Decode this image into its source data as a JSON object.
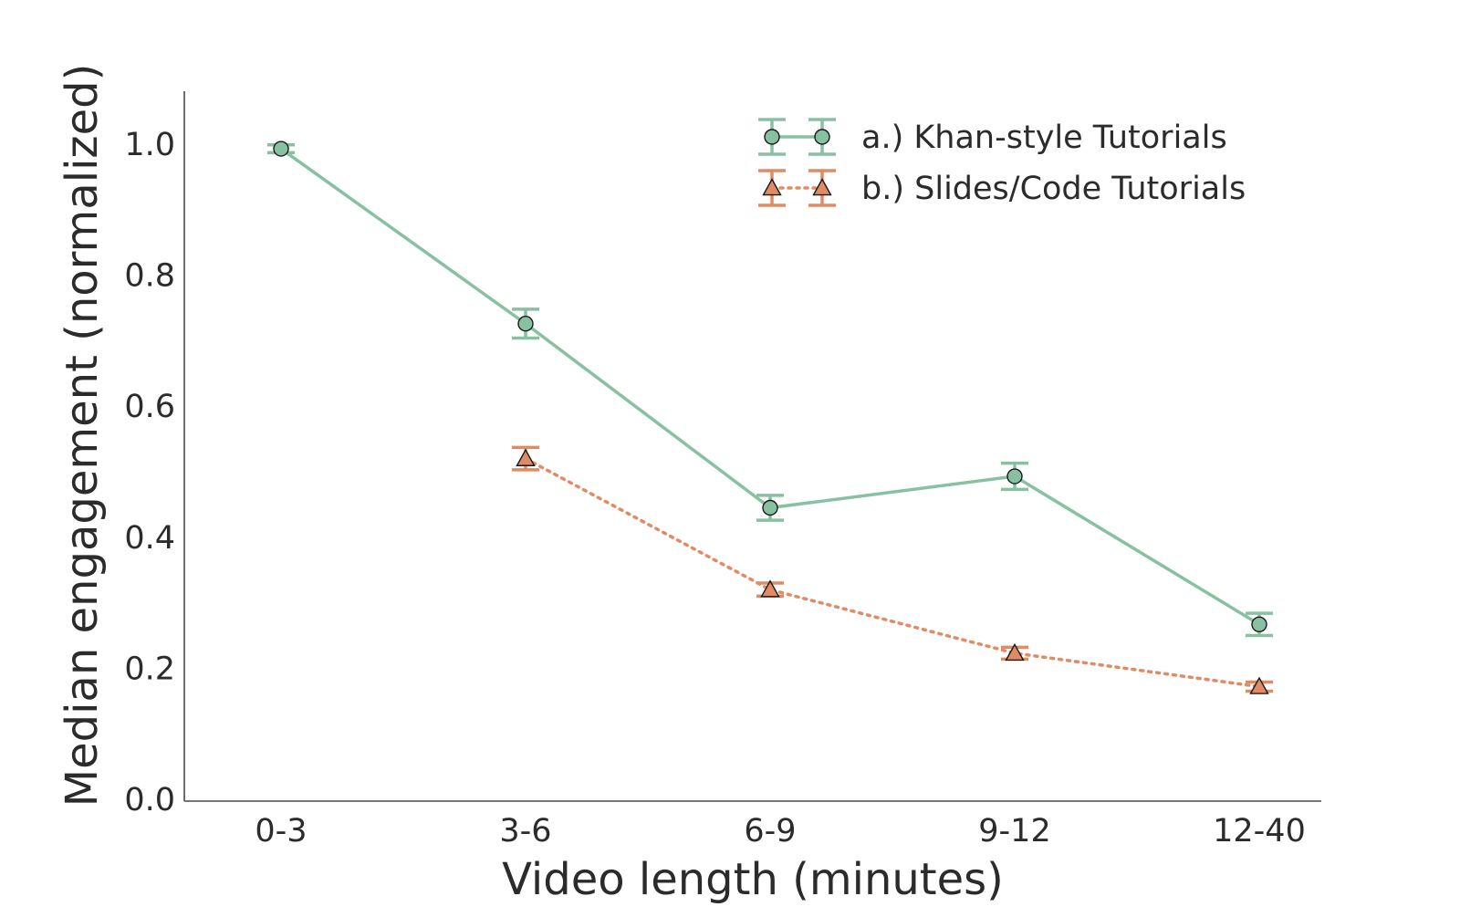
{
  "chart_data": {
    "type": "line",
    "xlabel": "Video length (minutes)",
    "ylabel": "Median engagement (normalized)",
    "categories": [
      "0-3",
      "3-6",
      "6-9",
      "9-12",
      "12-40"
    ],
    "ylim": [
      0.0,
      1.08
    ],
    "yticks": [
      0.0,
      0.2,
      0.4,
      0.6,
      0.8,
      1.0
    ],
    "ytick_labels": [
      "0.0",
      "0.2",
      "0.4",
      "0.6",
      "0.8",
      "1.0"
    ],
    "grid": false,
    "legend_position": "top-right",
    "series": [
      {
        "name": "a.) Khan-style Tutorials",
        "color": "#88c1a1",
        "marker": "circle",
        "line_style": "solid",
        "values": [
          0.993,
          0.726,
          0.445,
          0.493,
          0.267
        ],
        "error": [
          0.006,
          0.022,
          0.019,
          0.02,
          0.017
        ]
      },
      {
        "name": "b.) Slides/Code Tutorials",
        "color": "#e18b64",
        "marker": "triangle",
        "line_style": "dotted",
        "values": [
          null,
          0.52,
          0.32,
          0.223,
          0.172
        ],
        "error": [
          null,
          0.017,
          0.01,
          0.009,
          0.007
        ]
      }
    ]
  }
}
